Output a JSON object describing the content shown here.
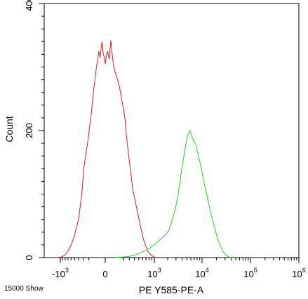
{
  "chart_data": {
    "type": "line",
    "title": "",
    "xlabel": "PE Y585-PE-A",
    "ylabel": "Count",
    "corner_label": "15000 Show",
    "xscale": "biexponential",
    "ylim": [
      0,
      400
    ],
    "y_ticks": [
      {
        "value": 0,
        "label": "0"
      },
      {
        "value": 200,
        "label": "200"
      },
      {
        "value": 400,
        "label": "400"
      }
    ],
    "x_ticks": [
      {
        "value": -1000,
        "base": "-10",
        "exp": "3"
      },
      {
        "value": 0,
        "base": "0",
        "exp": ""
      },
      {
        "value": 1000,
        "base": "10",
        "exp": "3"
      },
      {
        "value": 10000,
        "base": "10",
        "exp": "4"
      },
      {
        "value": 100000,
        "base": "10",
        "exp": "5"
      },
      {
        "value": 1000000,
        "base": "10",
        "exp": "6"
      }
    ],
    "series": [
      {
        "color": "#d42020",
        "points": [
          [
            -1200,
            0
          ],
          [
            -950,
            1
          ],
          [
            -820,
            4
          ],
          [
            -700,
            10
          ],
          [
            -600,
            20
          ],
          [
            -520,
            32
          ],
          [
            -450,
            48
          ],
          [
            -400,
            60
          ],
          [
            -360,
            82
          ],
          [
            -320,
            108
          ],
          [
            -290,
            140
          ],
          [
            -260,
            158
          ],
          [
            -230,
            175
          ],
          [
            -210,
            188
          ],
          [
            -190,
            205
          ],
          [
            -170,
            220
          ],
          [
            -150,
            240
          ],
          [
            -130,
            262
          ],
          [
            -110,
            282
          ],
          [
            -95,
            298
          ],
          [
            -80,
            310
          ],
          [
            -65,
            325
          ],
          [
            -50,
            315
          ],
          [
            -40,
            330
          ],
          [
            -30,
            340
          ],
          [
            -20,
            322
          ],
          [
            -10,
            316
          ],
          [
            0,
            305
          ],
          [
            10,
            318
          ],
          [
            20,
            325
          ],
          [
            35,
            312
          ],
          [
            50,
            342
          ],
          [
            65,
            318
          ],
          [
            80,
            300
          ],
          [
            95,
            292
          ],
          [
            110,
            285
          ],
          [
            130,
            278
          ],
          [
            150,
            268
          ],
          [
            170,
            255
          ],
          [
            190,
            242
          ],
          [
            210,
            232
          ],
          [
            230,
            215
          ],
          [
            250,
            192
          ],
          [
            270,
            175
          ],
          [
            300,
            152
          ],
          [
            330,
            132
          ],
          [
            360,
            110
          ],
          [
            400,
            95
          ],
          [
            450,
            78
          ],
          [
            500,
            62
          ],
          [
            560,
            45
          ],
          [
            620,
            30
          ],
          [
            680,
            20
          ],
          [
            760,
            10
          ],
          [
            850,
            5
          ],
          [
            950,
            2
          ],
          [
            1050,
            0
          ]
        ]
      },
      {
        "color": "#22d422",
        "points": [
          [
            100,
            0
          ],
          [
            200,
            1
          ],
          [
            300,
            2
          ],
          [
            450,
            5
          ],
          [
            600,
            9
          ],
          [
            800,
            14
          ],
          [
            1000,
            20
          ],
          [
            1200,
            25
          ],
          [
            1500,
            31
          ],
          [
            1800,
            36
          ],
          [
            2100,
            42
          ],
          [
            2400,
            55
          ],
          [
            2700,
            68
          ],
          [
            3000,
            82
          ],
          [
            3300,
            98
          ],
          [
            3600,
            118
          ],
          [
            3900,
            138
          ],
          [
            4200,
            152
          ],
          [
            4600,
            172
          ],
          [
            5000,
            188
          ],
          [
            5400,
            195
          ],
          [
            5800,
            200
          ],
          [
            6200,
            193
          ],
          [
            6600,
            186
          ],
          [
            7000,
            182
          ],
          [
            7500,
            178
          ],
          [
            8000,
            168
          ],
          [
            8600,
            158
          ],
          [
            9200,
            148
          ],
          [
            10000,
            134
          ],
          [
            11000,
            118
          ],
          [
            12000,
            106
          ],
          [
            13500,
            88
          ],
          [
            15000,
            72
          ],
          [
            17000,
            56
          ],
          [
            19000,
            42
          ],
          [
            21000,
            30
          ],
          [
            24000,
            18
          ],
          [
            27000,
            10
          ],
          [
            31000,
            4
          ],
          [
            36000,
            1
          ],
          [
            42000,
            0
          ]
        ]
      }
    ]
  }
}
